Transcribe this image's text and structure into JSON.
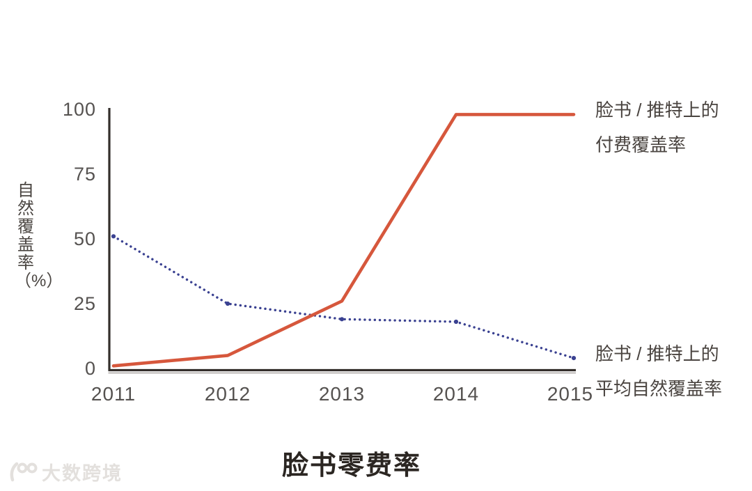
{
  "chart": {
    "y_axis_title": "自然覆盖率（%）",
    "x_axis_title": "脸书零费率",
    "y_tick_labels": [
      "100",
      "75",
      "50",
      "25",
      "0"
    ],
    "x_tick_labels": [
      "2011",
      "2012",
      "2013",
      "2014",
      "2015"
    ],
    "annotations": {
      "paid_line1": "脸书 / 推特上的",
      "paid_line2": "付费覆盖率",
      "organic_line1": "脸书 / 推特上的",
      "organic_line2": "平均自然覆盖率"
    }
  },
  "watermark": {
    "text": "大数跨境"
  },
  "colors": {
    "paid_line": "#d6573c",
    "organic_line": "#3a4191",
    "axis": "#332e2b",
    "axis_shadow": "#a9a5a1"
  },
  "chart_data": {
    "type": "line",
    "x": [
      2011,
      2012,
      2013,
      2014,
      2015
    ],
    "series": [
      {
        "name": "脸书/推特上的付费覆盖率",
        "values": [
          1,
          5,
          26,
          98,
          98
        ],
        "color": "#d6573c",
        "style": "solid"
      },
      {
        "name": "脸书/推特上的平均自然覆盖率",
        "values": [
          51,
          25,
          19,
          18,
          4
        ],
        "color": "#3a4191",
        "style": "dotted"
      }
    ],
    "title": "",
    "xlabel": "脸书零费率",
    "ylabel": "自然覆盖率（%）",
    "ylim": [
      0,
      100
    ],
    "yticks": [
      0,
      25,
      50,
      75,
      100
    ],
    "grid": false,
    "legend_position": "right-annotations"
  }
}
